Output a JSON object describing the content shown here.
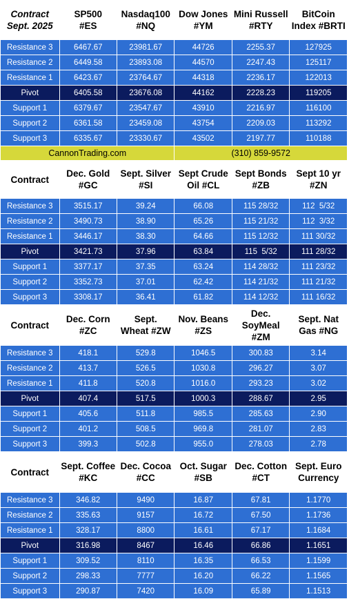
{
  "sections": [
    {
      "contract_label": [
        "Contract",
        "Sept. 2025"
      ],
      "contract_italic": true,
      "header_height": 56,
      "symbols": [
        [
          "SP500",
          "#ES"
        ],
        [
          "Nasdaq100",
          "#NQ"
        ],
        [
          "Dow Jones",
          "#YM"
        ],
        [
          "Mini Russell",
          "#RTY"
        ],
        [
          "BitCoin",
          "Index #BRTI"
        ]
      ],
      "rows": [
        {
          "label": "Resistance 3",
          "values": [
            "6467.67",
            "23981.67",
            "44726",
            "2255.37",
            "127925"
          ]
        },
        {
          "label": "Resistance 2",
          "values": [
            "6449.58",
            "23893.08",
            "44570",
            "2247.43",
            "125117"
          ]
        },
        {
          "label": "Resistance 1",
          "values": [
            "6423.67",
            "23764.67",
            "44318",
            "2236.17",
            "122013"
          ]
        },
        {
          "label": "Pivot",
          "pivot": true,
          "values": [
            "6405.58",
            "23676.08",
            "44162",
            "2228.23",
            "119205"
          ]
        },
        {
          "label": "Support 1",
          "values": [
            "6379.67",
            "23547.67",
            "43910",
            "2216.97",
            "116100"
          ]
        },
        {
          "label": "Support 2",
          "values": [
            "6361.58",
            "23459.08",
            "43754",
            "2209.03",
            "113292"
          ]
        },
        {
          "label": "Support 3",
          "values": [
            "6335.67",
            "23330.67",
            "43502",
            "2197.77",
            "110188"
          ]
        }
      ]
    },
    {
      "contract_label": [
        "Contract"
      ],
      "header_height": 54,
      "symbols": [
        [
          "Dec. Gold",
          "#GC"
        ],
        [
          "Sept. Silver",
          "#SI"
        ],
        [
          "Sept Crude",
          "Oil #CL"
        ],
        [
          "Sept Bonds",
          "#ZB"
        ],
        [
          "Sept 10 yr",
          "#ZN"
        ]
      ],
      "rows": [
        {
          "label": "Resistance 3",
          "values": [
            "3515.17",
            "39.24",
            "66.08",
            "115 28/32",
            "112  5/32"
          ]
        },
        {
          "label": "Resistance 2",
          "values": [
            "3490.73",
            "38.90",
            "65.26",
            "115 21/32",
            "112  3/32"
          ]
        },
        {
          "label": "Resistance 1",
          "values": [
            "3446.17",
            "38.30",
            "64.66",
            "115 12/32",
            "111 30/32"
          ]
        },
        {
          "label": "Pivot",
          "pivot": true,
          "values": [
            "3421.73",
            "37.96",
            "63.84",
            "115  5/32",
            "111 28/32"
          ]
        },
        {
          "label": "Support 1",
          "values": [
            "3377.17",
            "37.35",
            "63.24",
            "114 28/32",
            "111 23/32"
          ]
        },
        {
          "label": "Support 2",
          "values": [
            "3352.73",
            "37.01",
            "62.42",
            "114 21/32",
            "111 21/32"
          ]
        },
        {
          "label": "Support 3",
          "values": [
            "3308.17",
            "36.41",
            "61.82",
            "114 12/32",
            "111 16/32"
          ]
        }
      ]
    },
    {
      "contract_label": [
        "Contract"
      ],
      "header_height": 58,
      "symbols": [
        [
          "Dec. Corn",
          "#ZC"
        ],
        [
          "Sept.",
          "Wheat #ZW"
        ],
        [
          "Nov. Beans",
          "#ZS"
        ],
        [
          "Dec.",
          "SoyMeal",
          "#ZM"
        ],
        [
          "Sept. Nat",
          "Gas #NG"
        ]
      ],
      "rows": [
        {
          "label": "Resistance 3",
          "values": [
            "418.1",
            "529.8",
            "1046.5",
            "300.83",
            "3.14"
          ]
        },
        {
          "label": "Resistance 2",
          "values": [
            "413.7",
            "526.5",
            "1030.8",
            "296.27",
            "3.07"
          ]
        },
        {
          "label": "Resistance 1",
          "values": [
            "411.8",
            "520.8",
            "1016.0",
            "293.23",
            "3.02"
          ]
        },
        {
          "label": "Pivot",
          "pivot": true,
          "values": [
            "407.4",
            "517.5",
            "1000.3",
            "288.67",
            "2.95"
          ]
        },
        {
          "label": "Support 1",
          "values": [
            "405.6",
            "511.8",
            "985.5",
            "285.63",
            "2.90"
          ]
        },
        {
          "label": "Support 2",
          "values": [
            "401.2",
            "508.5",
            "969.8",
            "281.07",
            "2.83"
          ]
        },
        {
          "label": "Support 3",
          "values": [
            "399.3",
            "502.8",
            "955.0",
            "278.03",
            "2.78"
          ]
        }
      ]
    },
    {
      "contract_label": [
        "Contract"
      ],
      "header_height": 58,
      "selected_column": 1,
      "symbols": [
        [
          "Sept. Coffee",
          "#KC"
        ],
        [
          "Dec. Cocoa",
          "#CC"
        ],
        [
          "Oct. Sugar",
          "#SB"
        ],
        [
          "Dec. Cotton",
          "#CT"
        ],
        [
          "Sept. Euro",
          "Currency"
        ]
      ],
      "rows": [
        {
          "label": "Resistance 3",
          "values": [
            "346.82",
            "9490",
            "16.87",
            "67.81",
            "1.1770"
          ]
        },
        {
          "label": "Resistance 2",
          "values": [
            "335.63",
            "9157",
            "16.72",
            "67.50",
            "1.1736"
          ]
        },
        {
          "label": "Resistance 1",
          "values": [
            "328.17",
            "8800",
            "16.61",
            "67.17",
            "1.1684"
          ]
        },
        {
          "label": "Pivot",
          "pivot": true,
          "values": [
            "316.98",
            "8467",
            "16.46",
            "66.86",
            "1.1651"
          ]
        },
        {
          "label": "Support 1",
          "values": [
            "309.52",
            "8110",
            "16.35",
            "66.53",
            "1.1599"
          ]
        },
        {
          "label": "Support 2",
          "values": [
            "298.33",
            "7777",
            "16.20",
            "66.22",
            "1.1565"
          ]
        },
        {
          "label": "Support 3",
          "values": [
            "290.87",
            "7420",
            "16.09",
            "65.89",
            "1.1513"
          ]
        }
      ]
    }
  ],
  "banner": {
    "site": "CannonTrading.com",
    "phone": "(310) 859-9572",
    "after_section": 0
  },
  "colors": {
    "level_row": "#2e6fd3",
    "pivot_row": "#0b1b5e",
    "banner": "#d6d83a",
    "header_bg": "#ffffff"
  }
}
